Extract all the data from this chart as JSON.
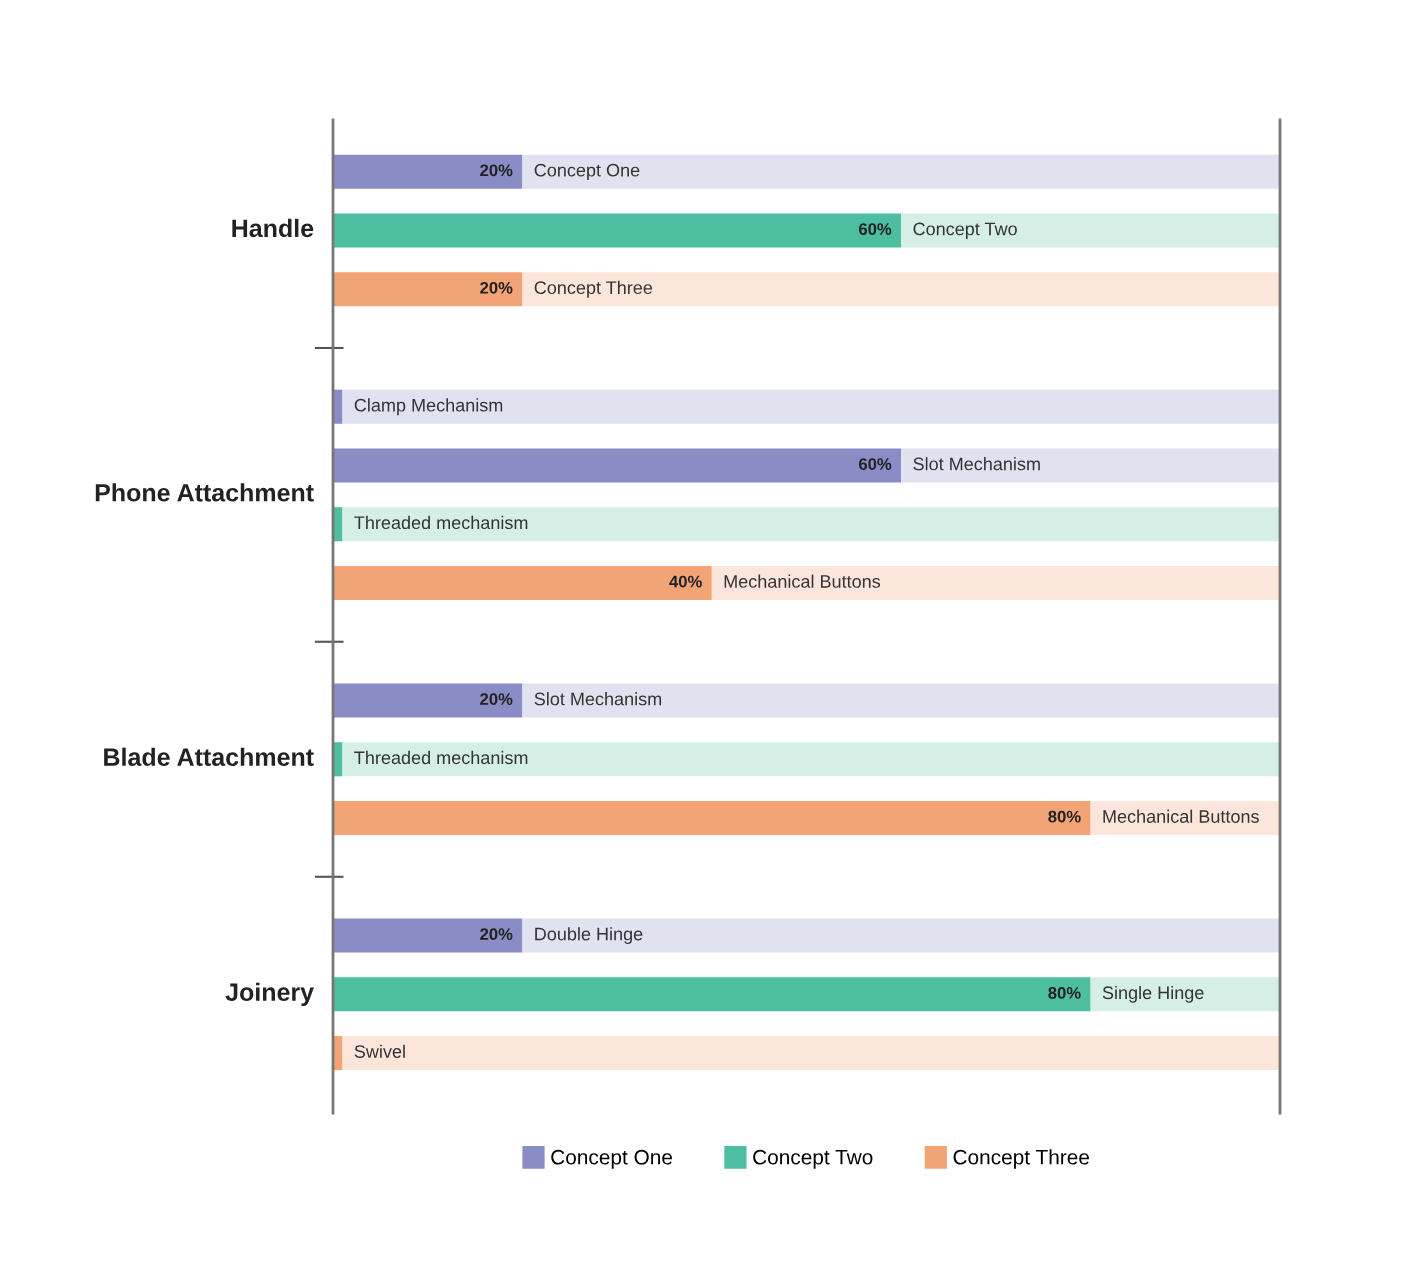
{
  "chart_data": {
    "type": "bar",
    "orientation": "horizontal",
    "stacked": true,
    "categories": [
      "Concept One",
      "Concept Two",
      "Concept Three",
      null,
      "Clamp Mechanism",
      "Slot Mechanism",
      "Threaded mechanism",
      "Mechanical Buttons",
      null,
      "Slot Mechanism",
      "Threaded mechanism",
      "Mechanical Buttons",
      null,
      "Double Hinge",
      "Single Hinge",
      "Swivel"
    ],
    "series": [
      {
        "name": "Concept One",
        "color": "#8a8cc5",
        "values": [
          20,
          null,
          null,
          null,
          1,
          60,
          null,
          null,
          null,
          20,
          null,
          null,
          null,
          20,
          null,
          null
        ],
        "value_labels": [
          "20%",
          null,
          null,
          null,
          null,
          "60%",
          null,
          null,
          null,
          "20%",
          null,
          null,
          null,
          "20%",
          null,
          null
        ]
      },
      {
        "name": "Concept Two",
        "color": "#4dbfa0",
        "values": [
          null,
          60,
          null,
          null,
          null,
          null,
          1,
          null,
          null,
          null,
          1,
          null,
          null,
          null,
          80,
          null
        ],
        "value_labels": [
          null,
          "60%",
          null,
          null,
          null,
          null,
          null,
          null,
          null,
          null,
          null,
          null,
          null,
          null,
          "80%",
          null
        ]
      },
      {
        "name": "Concept Three",
        "color": "#f3a476",
        "values": [
          null,
          null,
          20,
          null,
          null,
          null,
          null,
          40,
          null,
          null,
          null,
          80,
          null,
          null,
          null,
          1
        ],
        "value_labels": [
          null,
          null,
          "20%",
          null,
          null,
          null,
          null,
          "40%",
          null,
          null,
          null,
          "80%",
          null,
          null,
          null,
          null
        ]
      },
      {
        "color": "#e1e2f0",
        "values": [
          80,
          null,
          null,
          null,
          99,
          40,
          null,
          null,
          null,
          80,
          null,
          null,
          null,
          80,
          null,
          null
        ]
      },
      {
        "color": "#d5eee6",
        "values": [
          null,
          40,
          null,
          null,
          null,
          null,
          99,
          null,
          null,
          null,
          99,
          null,
          null,
          null,
          20,
          null
        ]
      },
      {
        "color": "#fce5da",
        "values": [
          null,
          null,
          80,
          null,
          null,
          null,
          null,
          60,
          null,
          null,
          null,
          20,
          null,
          null,
          null,
          99
        ]
      }
    ],
    "annotations": [
      "Handle",
      "Phone Attachment",
      "Blade Attachment",
      "Joinery"
    ],
    "xlim": [
      0,
      100
    ],
    "legend": "bottom"
  }
}
